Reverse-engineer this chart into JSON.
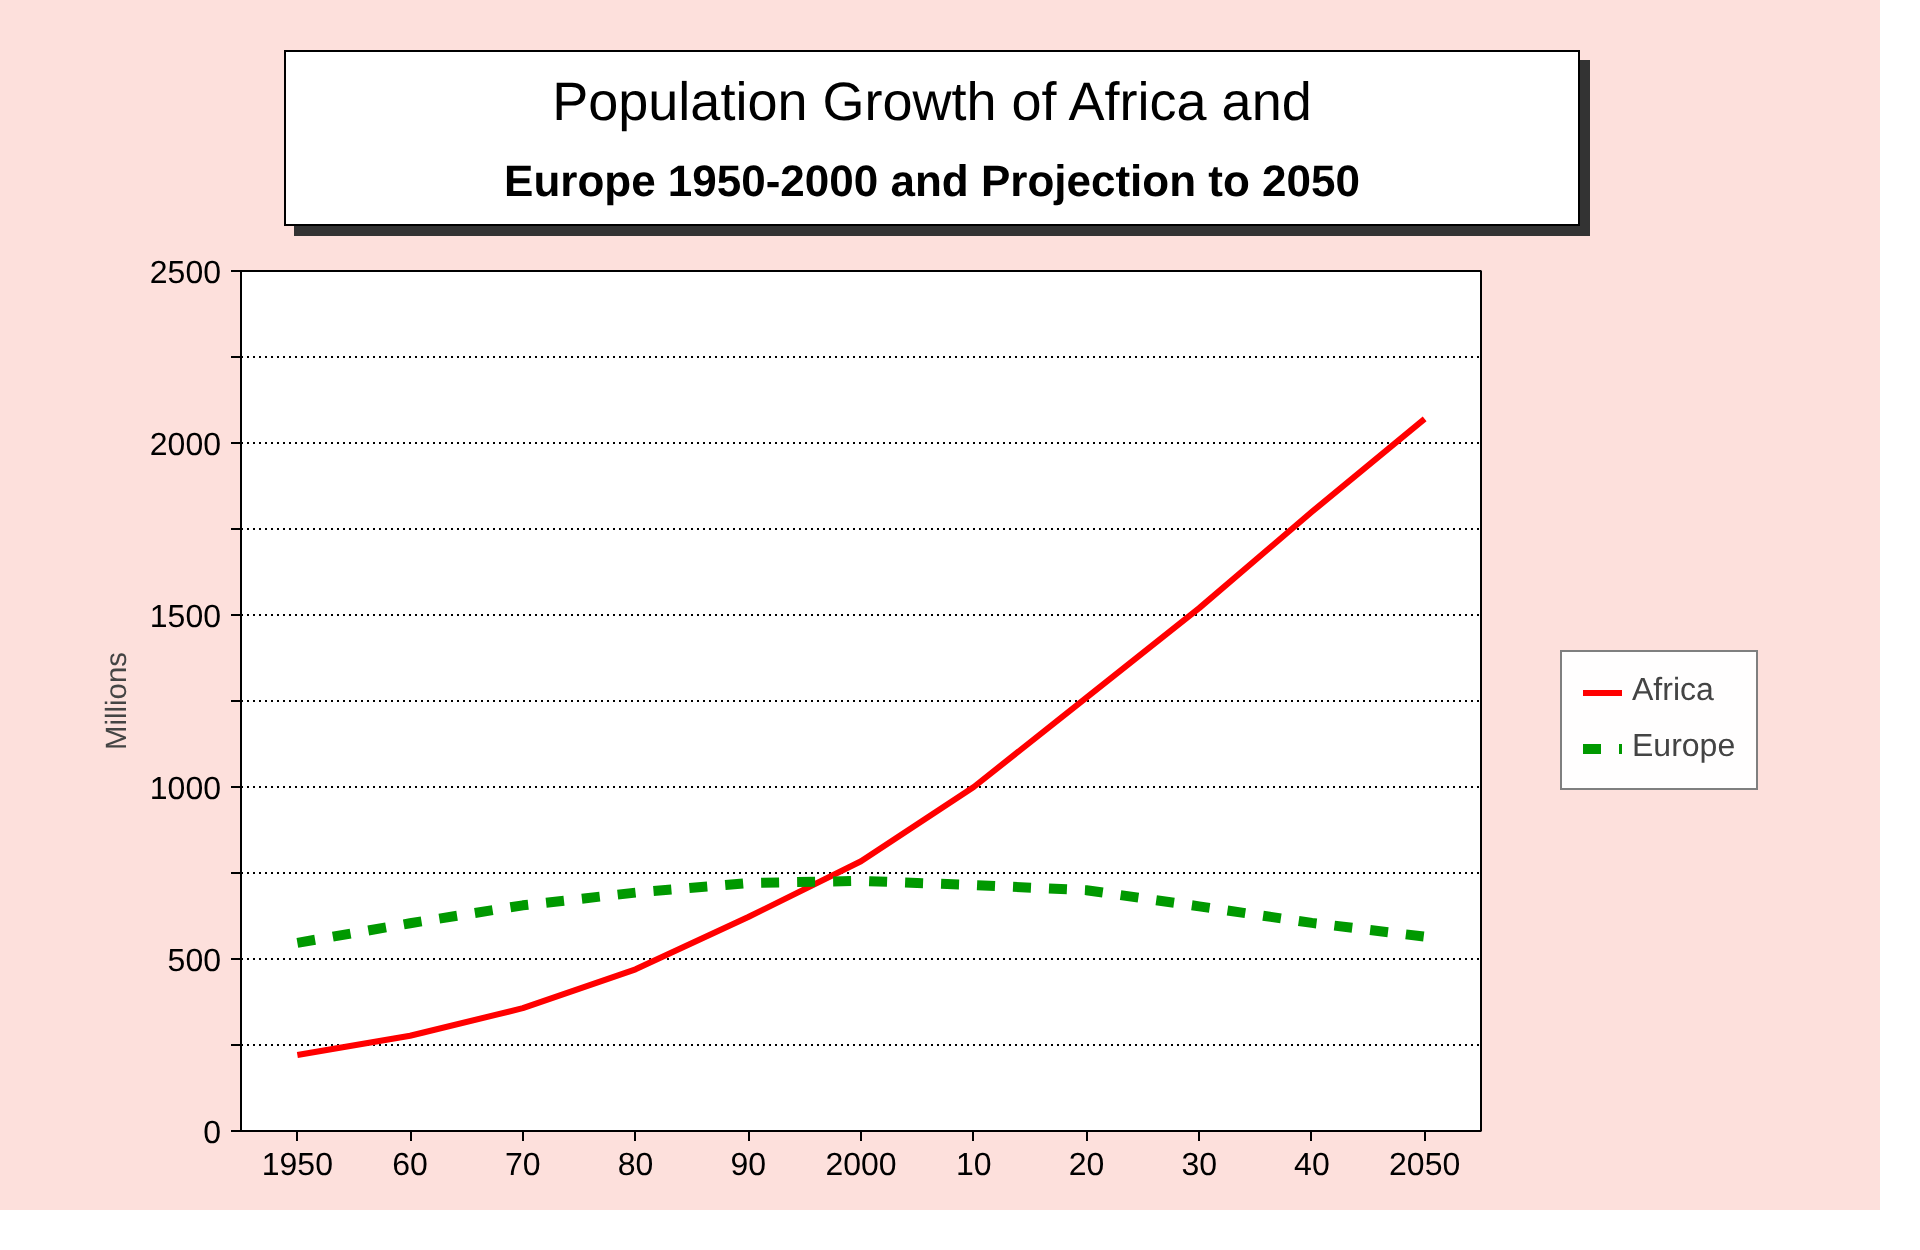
{
  "chart_data": {
    "type": "line",
    "title": "Population Growth of Africa and",
    "subtitle": "Europe 1950-2000 and Projection to 2050",
    "ylabel": "Millions",
    "x": [
      1950,
      1960,
      1970,
      1980,
      1990,
      2000,
      2010,
      2020,
      2030,
      2040,
      2050
    ],
    "series": [
      {
        "name": "Africa",
        "color": "#ff0000",
        "line_style": "solid",
        "values": [
          221,
          277,
          357,
          470,
          622,
          784,
          1000,
          1260,
          1520,
          1800,
          2070
        ]
      },
      {
        "name": "Europe",
        "color": "#009900",
        "line_style": "dashed",
        "values": [
          547,
          604,
          656,
          693,
          721,
          727,
          715,
          700,
          653,
          605,
          565
        ]
      }
    ],
    "xlim": [
      1945,
      2055
    ],
    "xticks": [
      1950,
      {
        "value": 1960,
        "label": "60"
      },
      {
        "value": 1970,
        "label": "70"
      },
      {
        "value": 1980,
        "label": "80"
      },
      {
        "value": 1990,
        "label": "90"
      },
      2000,
      {
        "value": 2010,
        "label": "10"
      },
      {
        "value": 2020,
        "label": "20"
      },
      {
        "value": 2030,
        "label": "30"
      },
      {
        "value": 2040,
        "label": "40"
      },
      2050
    ],
    "ylim": [
      0,
      2500
    ],
    "yticks": [
      0,
      {
        "value": 250,
        "label": null
      },
      500,
      {
        "value": 750,
        "label": null
      },
      1000,
      {
        "value": 1250,
        "label": null
      },
      1500,
      {
        "value": 1750,
        "label": null
      },
      2000,
      {
        "value": 2250,
        "label": null
      },
      2500
    ],
    "grid": "y",
    "legend": "right",
    "marker": "none"
  }
}
